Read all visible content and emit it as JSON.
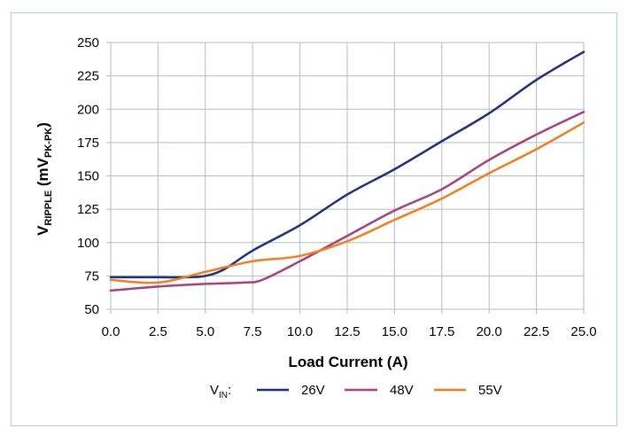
{
  "chart_data": {
    "type": "line",
    "xlabel": "Load Current (A)",
    "ylabel": {
      "main": "V",
      "sub": "RIPPLE",
      "unit_open": " (mV",
      "unit_sub": "PK-PK",
      "unit_close": ")"
    },
    "xlim": [
      0,
      25
    ],
    "ylim": [
      50,
      250
    ],
    "x_ticks": [
      "0.0",
      "2.5",
      "5.0",
      "7.5",
      "10.0",
      "12.5",
      "15.0",
      "17.5",
      "20.0",
      "22.5",
      "25.0"
    ],
    "y_ticks": [
      "50",
      "75",
      "100",
      "125",
      "150",
      "175",
      "200",
      "225",
      "250"
    ],
    "grid": true,
    "legend": {
      "placement": "bottom",
      "prefix_main": "V",
      "prefix_sub": "IN",
      "prefix_suffix": ":"
    },
    "series": [
      {
        "name": "26V",
        "color": "#1f2f7f",
        "points": [
          [
            0,
            74
          ],
          [
            2.5,
            74
          ],
          [
            4,
            74
          ],
          [
            5,
            75
          ],
          [
            6,
            80
          ],
          [
            7.5,
            94
          ],
          [
            10,
            113
          ],
          [
            12.5,
            136
          ],
          [
            15,
            155
          ],
          [
            17.5,
            176
          ],
          [
            20,
            197
          ],
          [
            22.5,
            222
          ],
          [
            25,
            243
          ]
        ]
      },
      {
        "name": "48V",
        "color": "#a8417a",
        "points": [
          [
            0,
            64
          ],
          [
            2.5,
            67
          ],
          [
            5,
            69
          ],
          [
            7,
            70
          ],
          [
            8,
            72
          ],
          [
            10,
            86
          ],
          [
            12.5,
            105
          ],
          [
            15,
            124
          ],
          [
            17.5,
            140
          ],
          [
            20,
            162
          ],
          [
            22.5,
            181
          ],
          [
            25,
            198
          ]
        ]
      },
      {
        "name": "55V",
        "color": "#f07f1c",
        "points": [
          [
            0,
            72
          ],
          [
            2.5,
            70
          ],
          [
            5,
            78
          ],
          [
            7.5,
            86
          ],
          [
            10,
            90
          ],
          [
            12.5,
            101
          ],
          [
            15,
            117
          ],
          [
            17.5,
            133
          ],
          [
            20,
            152
          ],
          [
            22.5,
            170
          ],
          [
            25,
            190
          ]
        ]
      }
    ]
  }
}
